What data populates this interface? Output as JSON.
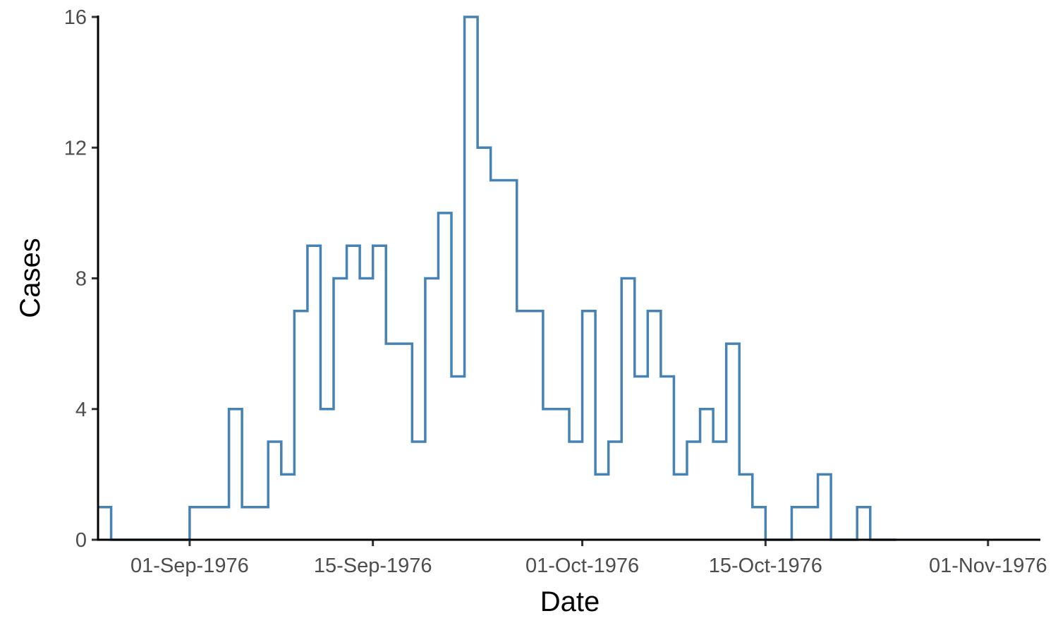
{
  "chart_data": {
    "type": "line",
    "step": true,
    "title": "",
    "xlabel": "Date",
    "ylabel": "Cases",
    "x_start": "1976-08-25",
    "x_end": "1976-11-05",
    "ylim": [
      0,
      16
    ],
    "y_ticks": [
      0,
      4,
      8,
      12,
      16
    ],
    "x_ticks": [
      {
        "date": "1976-09-01",
        "label": "01-Sep-1976"
      },
      {
        "date": "1976-09-15",
        "label": "15-Sep-1976"
      },
      {
        "date": "1976-10-01",
        "label": "01-Oct-1976"
      },
      {
        "date": "1976-10-15",
        "label": "15-Oct-1976"
      },
      {
        "date": "1976-11-01",
        "label": "01-Nov-1976"
      }
    ],
    "grid": false,
    "legend": "none",
    "color": "#4682B4",
    "series": [
      {
        "x": [
          "1976-08-25",
          "1976-08-26",
          "1976-08-27",
          "1976-08-28",
          "1976-08-29",
          "1976-08-30",
          "1976-08-31",
          "1976-09-01",
          "1976-09-02",
          "1976-09-03",
          "1976-09-04",
          "1976-09-05",
          "1976-09-06",
          "1976-09-07",
          "1976-09-08",
          "1976-09-09",
          "1976-09-10",
          "1976-09-11",
          "1976-09-12",
          "1976-09-13",
          "1976-09-14",
          "1976-09-15",
          "1976-09-16",
          "1976-09-17",
          "1976-09-18",
          "1976-09-19",
          "1976-09-20",
          "1976-09-21",
          "1976-09-22",
          "1976-09-23",
          "1976-09-24",
          "1976-09-25",
          "1976-09-26",
          "1976-09-27",
          "1976-09-28",
          "1976-09-29",
          "1976-09-30",
          "1976-10-01",
          "1976-10-02",
          "1976-10-03",
          "1976-10-04",
          "1976-10-05",
          "1976-10-06",
          "1976-10-07",
          "1976-10-08",
          "1976-10-09",
          "1976-10-10",
          "1976-10-11",
          "1976-10-12",
          "1976-10-13",
          "1976-10-14",
          "1976-10-15",
          "1976-10-16",
          "1976-10-17",
          "1976-10-18",
          "1976-10-19",
          "1976-10-20",
          "1976-10-21",
          "1976-10-22",
          "1976-10-23",
          "1976-10-24"
        ],
        "y": [
          1,
          0,
          0,
          0,
          0,
          0,
          0,
          1,
          1,
          1,
          4,
          1,
          1,
          3,
          2,
          7,
          9,
          4,
          8,
          9,
          8,
          9,
          6,
          6,
          3,
          8,
          10,
          5,
          16,
          12,
          11,
          11,
          7,
          7,
          4,
          4,
          3,
          7,
          2,
          3,
          8,
          5,
          7,
          5,
          2,
          3,
          4,
          3,
          6,
          2,
          1,
          0,
          0,
          1,
          1,
          2,
          0,
          0,
          1,
          0,
          0
        ]
      }
    ]
  }
}
